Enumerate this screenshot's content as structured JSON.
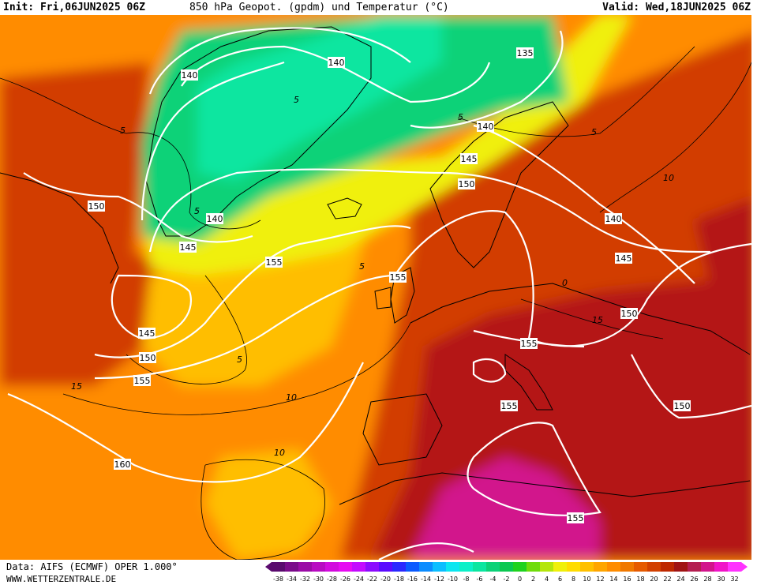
{
  "header": {
    "init": "Init: Fri,06JUN2025 06Z",
    "title": "850 hPa Geopot. (gpdm) und Temperatur (°C)",
    "valid": "Valid: Wed,18JUN2025 06Z"
  },
  "footer": {
    "data_source": "Data: AIFS (ECMWF) OPER 1.000°",
    "website": "WWW.WETTERZENTRALE.DE"
  },
  "colorbar": {
    "ticks": [
      "-38",
      "-34",
      "-32",
      "-30",
      "-28",
      "-26",
      "-24",
      "-22",
      "-20",
      "-18",
      "-16",
      "-14",
      "-12",
      "-10",
      "-8",
      "-6",
      "-4",
      "-2",
      "0",
      "2",
      "4",
      "6",
      "8",
      "10",
      "12",
      "14",
      "16",
      "18",
      "20",
      "22",
      "24",
      "26",
      "28",
      "30",
      "32"
    ],
    "colors": [
      "#5a0a6e",
      "#7a0a8a",
      "#9a0aa6",
      "#b80ac2",
      "#d20ade",
      "#e60af2",
      "#c30aff",
      "#8c0aff",
      "#5a0aff",
      "#2a28ff",
      "#0a5aff",
      "#0a8cff",
      "#0abeff",
      "#0ae6f0",
      "#0af0c8",
      "#0ae6a0",
      "#0ad278",
      "#0ac850",
      "#1ed21e",
      "#6edc0a",
      "#b4e60a",
      "#f0f00a",
      "#ffdc00",
      "#ffc000",
      "#ffa500",
      "#ff8c00",
      "#f07800",
      "#e65a00",
      "#d24000",
      "#be2800",
      "#a01414",
      "#b41e50",
      "#d2148c",
      "#f014c8",
      "#ff32ff"
    ]
  },
  "map_data": {
    "geopotential_labels": [
      "140",
      "135",
      "140",
      "140",
      "145",
      "150",
      "150",
      "145",
      "140",
      "145",
      "155",
      "155",
      "140",
      "145",
      "150",
      "155",
      "150",
      "155",
      "155",
      "150",
      "160",
      "155"
    ],
    "temperature_labels": [
      "5",
      "5",
      "5",
      "5",
      "5",
      "5",
      "5",
      "0",
      "10",
      "10",
      "15",
      "15",
      "10"
    ],
    "colors": {
      "temp_18_plus": "#b41414",
      "temp_14_16": "#d23c00",
      "temp_10_12": "#ff8c00",
      "temp_6_8": "#ffbe00",
      "temp_2_4": "#f0f00a",
      "temp_0_2": "#0ad278",
      "temp_cold": "#0ae6a0",
      "temp_24_plus": "#d2148c",
      "contour_geopotential": "#ffffff",
      "coastline": "#000000"
    }
  }
}
